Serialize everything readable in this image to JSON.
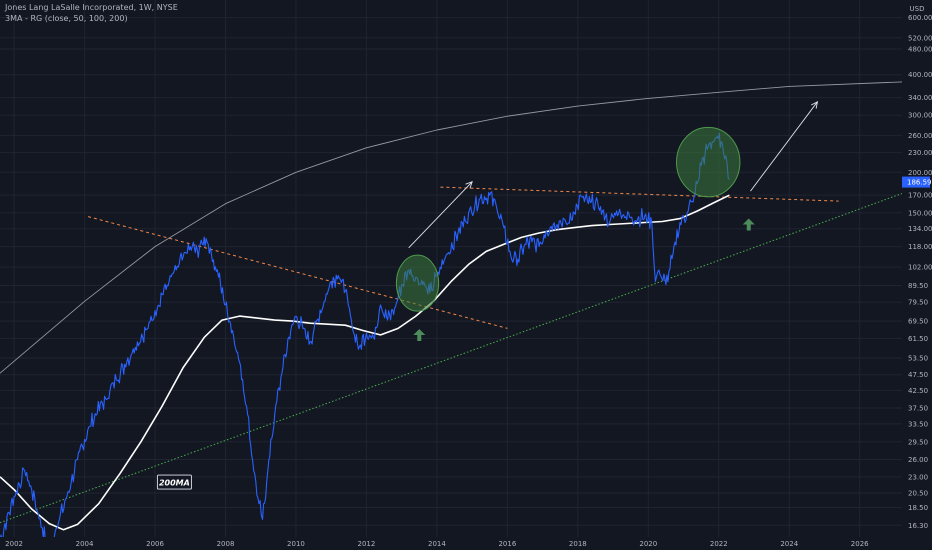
{
  "header": {
    "title": "Jones Lang LaSalle Incorporated, 1W, NYSE",
    "study": "3MA - RG (close, 50, 100, 200)"
  },
  "chart_data": {
    "type": "line",
    "scale": "log",
    "currency": "USD",
    "last_price": "186.59",
    "annotation_label": "200MA",
    "x_ticks": [
      "2002",
      "2004",
      "2006",
      "2008",
      "2010",
      "2012",
      "2014",
      "2016",
      "2018",
      "2020",
      "2022",
      "2024",
      "2026"
    ],
    "y_ticks": [
      16.3,
      18.5,
      20.5,
      23.0,
      26.0,
      29.5,
      33.5,
      37.5,
      42.5,
      47.5,
      53.5,
      61.5,
      69.5,
      79.5,
      89.5,
      102.0,
      118.0,
      134.0,
      150.0,
      170.0,
      200.0,
      230.0,
      260.0,
      300.0,
      340.0,
      400.0,
      480.0,
      520.0,
      600.0
    ],
    "y_tick_labels": [
      "16.30",
      "18.50",
      "20.50",
      "23.00",
      "26.00",
      "29.50",
      "33.50",
      "37.50",
      "42.50",
      "47.50",
      "53.50",
      "61.50",
      "69.50",
      "79.50",
      "89.50",
      "102.00",
      "118.00",
      "134.00",
      "150.00",
      "170.00",
      "200.00",
      "230.00",
      "260.00",
      "300.00",
      "340.00",
      "400.00",
      "480.00",
      "520.00",
      "600.00"
    ],
    "ylim": [
      15.0,
      680.0
    ],
    "xlim": [
      2001.6,
      2027.2
    ],
    "colors": {
      "price": "#2962ff",
      "ma200": "#ffffff",
      "resistance": "#f2884a",
      "support": "#4caf50",
      "long_curve": "#9598a1",
      "arrow_up": "#4c8c5a",
      "circle": "#3d7a3d",
      "price_tag": "#2962ff"
    },
    "series": [
      {
        "key": "price",
        "x": [
          2001.6,
          2002.0,
          2002.3,
          2002.5,
          2002.8,
          2003.0,
          2003.2,
          2003.5,
          2003.8,
          2004.0,
          2004.3,
          2004.6,
          2004.9,
          2005.2,
          2005.5,
          2005.8,
          2006.0,
          2006.2,
          2006.4,
          2006.6,
          2006.8,
          2007.0,
          2007.2,
          2007.45,
          2007.6,
          2007.8,
          2008.0,
          2008.2,
          2008.4,
          2008.6,
          2008.8,
          2008.95,
          2009.05,
          2009.2,
          2009.4,
          2009.6,
          2009.8,
          2010.0,
          2010.2,
          2010.4,
          2010.6,
          2010.8,
          2011.0,
          2011.2,
          2011.4,
          2011.6,
          2011.8,
          2012.0,
          2012.2,
          2012.4,
          2012.6,
          2012.8,
          2013.0,
          2013.2,
          2013.4,
          2013.6,
          2013.8,
          2014.0,
          2014.3,
          2014.6,
          2014.9,
          2015.2,
          2015.5,
          2015.7,
          2015.9,
          2016.1,
          2016.3,
          2016.5,
          2016.7,
          2016.9,
          2017.1,
          2017.3,
          2017.5,
          2017.7,
          2017.9,
          2018.1,
          2018.3,
          2018.5,
          2018.7,
          2018.9,
          2019.1,
          2019.3,
          2019.5,
          2019.7,
          2019.9,
          2020.1,
          2020.2,
          2020.3,
          2020.5,
          2020.7,
          2020.9,
          2021.1,
          2021.3,
          2021.5,
          2021.7,
          2021.9,
          2022.1,
          2022.2,
          2022.3
        ],
        "y": [
          14.5,
          20,
          24,
          21,
          16,
          13.5,
          16,
          20,
          26,
          30,
          36,
          40,
          46,
          52,
          60,
          66,
          75,
          84,
          92,
          100,
          110,
          118,
          115,
          125,
          112,
          95,
          78,
          65,
          52,
          38,
          24,
          19,
          17,
          24,
          36,
          48,
          62,
          72,
          66,
          60,
          70,
          80,
          92,
          96,
          86,
          66,
          58,
          64,
          62,
          78,
          70,
          76,
          90,
          100,
          95,
          90,
          85,
          96,
          112,
          130,
          150,
          165,
          170,
          155,
          135,
          110,
          108,
          120,
          122,
          118,
          132,
          138,
          142,
          138,
          150,
          168,
          160,
          162,
          152,
          140,
          152,
          148,
          145,
          144,
          147,
          140,
          92,
          100,
          90,
          112,
          140,
          150,
          168,
          210,
          240,
          255,
          245,
          225,
          190
        ]
      },
      {
        "key": "ma200",
        "x": [
          2001.6,
          2002.0,
          2002.5,
          2003.0,
          2003.4,
          2003.8,
          2004.4,
          2005.0,
          2005.6,
          2006.2,
          2006.8,
          2007.4,
          2007.9,
          2008.4,
          2008.9,
          2009.4,
          2009.9,
          2010.4,
          2010.9,
          2011.4,
          2011.9,
          2012.4,
          2012.9,
          2013.4,
          2013.9,
          2014.4,
          2014.9,
          2015.4,
          2015.9,
          2016.4,
          2016.9,
          2017.4,
          2017.9,
          2018.4,
          2018.9,
          2019.4,
          2019.9,
          2020.4,
          2020.9,
          2021.4,
          2021.9,
          2022.3
        ],
        "y": [
          23,
          21,
          18.3,
          16.5,
          15.8,
          16.4,
          19,
          23.5,
          29.5,
          38,
          50,
          62,
          70,
          72,
          71,
          70,
          69.5,
          68.5,
          68,
          67.5,
          65,
          63,
          66,
          72,
          80,
          92,
          104,
          114,
          120,
          126,
          130,
          133,
          135,
          137,
          138,
          139,
          140,
          141,
          144,
          152,
          162,
          170
        ]
      },
      {
        "key": "support_trend",
        "x": [
          2001.6,
          2027.2
        ],
        "y": [
          16.6,
          172
        ]
      },
      {
        "key": "resistance_trend",
        "x": [
          2004.1,
          2016.0
        ],
        "y": [
          146,
          66
        ]
      },
      {
        "key": "ceiling_trend",
        "x": [
          2014.1,
          2025.4
        ],
        "y": [
          180,
          163
        ]
      },
      {
        "key": "long_curve",
        "x": [
          2001.6,
          2004,
          2006,
          2008,
          2010,
          2012,
          2014,
          2016,
          2018,
          2020,
          2022,
          2024,
          2027.2
        ],
        "y": [
          48,
          80,
          118,
          160,
          200,
          238,
          270,
          298,
          320,
          338,
          353,
          368,
          380
        ]
      }
    ],
    "circles": [
      {
        "x": 2013.45,
        "y": 91,
        "rx_years": 0.6,
        "ry_mult": 1.22
      },
      {
        "x": 2021.7,
        "y": 215,
        "rx_years": 0.9,
        "ry_mult": 1.28
      }
    ],
    "arrows_diag": [
      {
        "x1": 2013.2,
        "y1": 117,
        "x2": 2015.0,
        "y2": 187
      },
      {
        "x1": 2022.9,
        "y1": 175,
        "x2": 2024.8,
        "y2": 330
      }
    ],
    "arrows_up": [
      {
        "x": 2013.5,
        "y": 63
      },
      {
        "x": 2022.85,
        "y": 138
      }
    ],
    "label_position": {
      "x": 2006.55,
      "y": 22
    }
  }
}
